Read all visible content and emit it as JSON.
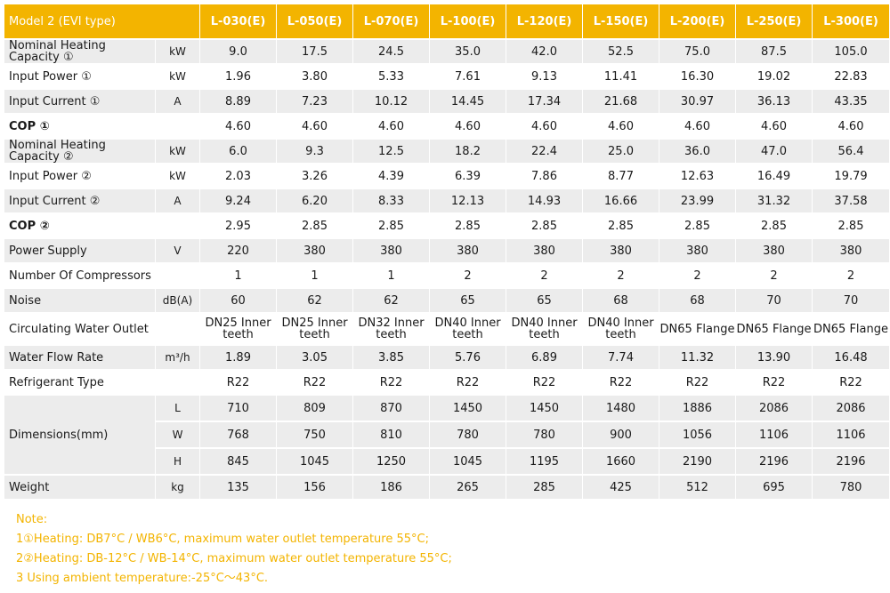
{
  "header": {
    "title": "Model 2 (EVI type)",
    "models": [
      "L-030(E)",
      "L-050(E)",
      "L-070(E)",
      "L-100(E)",
      "L-120(E)",
      "L-150(E)",
      "L-200(E)",
      "L-250(E)",
      "L-300(E)"
    ]
  },
  "rows": [
    {
      "label": "Nominal Heating Capacity ①",
      "unit": "kW",
      "values": [
        "9.0",
        "17.5",
        "24.5",
        "35.0",
        "42.0",
        "52.5",
        "75.0",
        "87.5",
        "105.0"
      ]
    },
    {
      "label": "Input Power ①",
      "unit": "kW",
      "values": [
        "1.96",
        "3.80",
        "5.33",
        "7.61",
        "9.13",
        "11.41",
        "16.30",
        "19.02",
        "22.83"
      ]
    },
    {
      "label": "Input Current ①",
      "unit": "A",
      "values": [
        "8.89",
        "7.23",
        "10.12",
        "14.45",
        "17.34",
        "21.68",
        "30.97",
        "36.13",
        "43.35"
      ]
    },
    {
      "label": "COP ①",
      "unit": "",
      "bold": true,
      "values": [
        "4.60",
        "4.60",
        "4.60",
        "4.60",
        "4.60",
        "4.60",
        "4.60",
        "4.60",
        "4.60"
      ]
    },
    {
      "label": "Nominal Heating Capacity ②",
      "unit": "kW",
      "values": [
        "6.0",
        "9.3",
        "12.5",
        "18.2",
        "22.4",
        "25.0",
        "36.0",
        "47.0",
        "56.4"
      ]
    },
    {
      "label": "Input Power ②",
      "unit": "kW",
      "values": [
        "2.03",
        "3.26",
        "4.39",
        "6.39",
        "7.86",
        "8.77",
        "12.63",
        "16.49",
        "19.79"
      ]
    },
    {
      "label": "Input Current ②",
      "unit": "A",
      "values": [
        "9.24",
        "6.20",
        "8.33",
        "12.13",
        "14.93",
        "16.66",
        "23.99",
        "31.32",
        "37.58"
      ]
    },
    {
      "label": "COP ②",
      "unit": "",
      "bold": true,
      "values": [
        "2.95",
        "2.85",
        "2.85",
        "2.85",
        "2.85",
        "2.85",
        "2.85",
        "2.85",
        "2.85"
      ]
    },
    {
      "label": "Power Supply",
      "unit": "V",
      "values": [
        "220",
        "380",
        "380",
        "380",
        "380",
        "380",
        "380",
        "380",
        "380"
      ]
    },
    {
      "label": "Number Of Compressors",
      "unit": "",
      "values": [
        "1",
        "1",
        "1",
        "2",
        "2",
        "2",
        "2",
        "2",
        "2"
      ]
    },
    {
      "label": "Noise",
      "unit": "dB(A)",
      "values": [
        "60",
        "62",
        "62",
        "65",
        "65",
        "68",
        "68",
        "70",
        "70"
      ]
    },
    {
      "label": "Circulating Water Outlet",
      "unit": "",
      "values": [
        "DN25 Inner teeth",
        "DN25 Inner teeth",
        "DN32 Inner teeth",
        "DN40 Inner teeth",
        "DN40 Inner teeth",
        "DN40 Inner teeth",
        "DN65 Flange",
        "DN65 Flange",
        "DN65 Flange"
      ]
    },
    {
      "label": "Water Flow Rate",
      "unit": "m³/h",
      "values": [
        "1.89",
        "3.05",
        "3.85",
        "5.76",
        "6.89",
        "7.74",
        "11.32",
        "13.90",
        "16.48"
      ]
    },
    {
      "label": "Refrigerant Type",
      "unit": "",
      "values": [
        "R22",
        "R22",
        "R22",
        "R22",
        "R22",
        "R22",
        "R22",
        "R22",
        "R22"
      ]
    }
  ],
  "dimensions": {
    "label": "Dimensions(mm)",
    "rows": [
      {
        "unit": "L",
        "values": [
          "710",
          "809",
          "870",
          "1450",
          "1450",
          "1480",
          "1886",
          "2086",
          "2086"
        ]
      },
      {
        "unit": "W",
        "values": [
          "768",
          "750",
          "810",
          "780",
          "780",
          "900",
          "1056",
          "1106",
          "1106"
        ]
      },
      {
        "unit": "H",
        "values": [
          "845",
          "1045",
          "1250",
          "1045",
          "1195",
          "1660",
          "2190",
          "2196",
          "2196"
        ]
      }
    ]
  },
  "weight": {
    "label": "Weight",
    "unit": "kg",
    "values": [
      "135",
      "156",
      "186",
      "265",
      "285",
      "425",
      "512",
      "695",
      "780"
    ]
  },
  "notes": {
    "title": "Note:",
    "lines": [
      "1①Heating: DB7°C / WB6°C, maximum water outlet temperature 55°C;",
      "2②Heating: DB-12°C / WB-14°C, maximum water outlet temperature 55°C;",
      "3 Using ambient temperature:-25°C～43°C."
    ]
  }
}
